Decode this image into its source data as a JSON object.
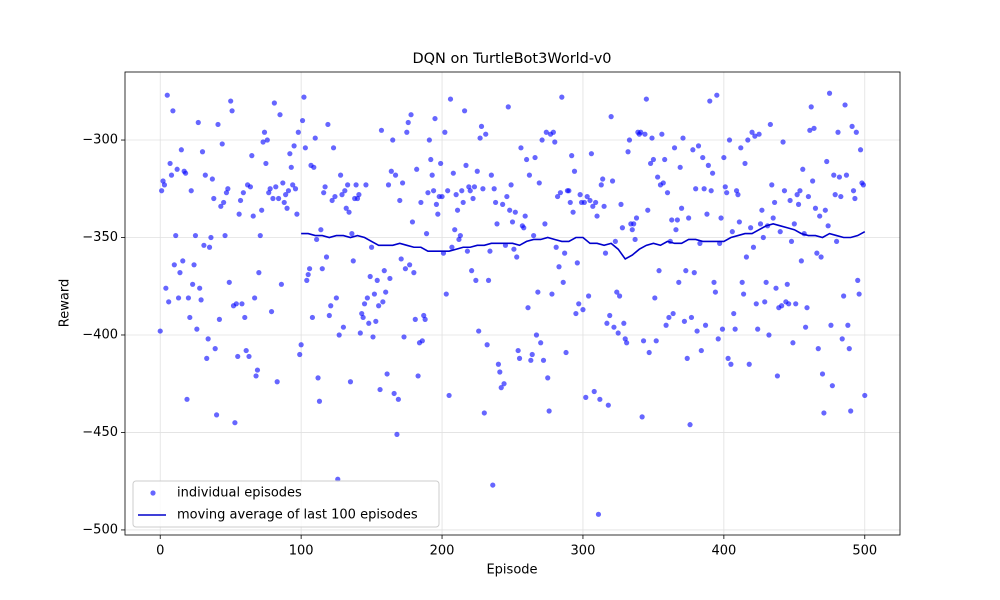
{
  "chart_data": {
    "type": "scatter-line",
    "title": "DQN on TurtleBot3World-v0",
    "x_label": "Episode",
    "y_label": "Reward",
    "xlim": [
      -25,
      525
    ],
    "ylim": [
      -502.6,
      -265.1
    ],
    "xticks": [
      0,
      100,
      200,
      300,
      400,
      500
    ],
    "yticks": [
      {
        "value": -500,
        "label": "−500"
      },
      {
        "value": -450,
        "label": "−450"
      },
      {
        "value": -400,
        "label": "−400"
      },
      {
        "value": -350,
        "label": "−350"
      },
      {
        "value": -300,
        "label": "−300"
      }
    ],
    "grid": true,
    "legend": "lower left",
    "series": [
      {
        "name": "individual episodes",
        "kind": "scatter",
        "color": "#0000ff",
        "x": [
          0,
          1,
          2,
          3,
          4,
          5,
          6,
          7,
          8,
          9,
          10,
          11,
          12,
          13,
          14,
          15,
          16,
          17,
          18,
          19,
          20,
          21,
          22,
          23,
          24,
          25,
          26,
          27,
          28,
          29,
          30,
          31,
          32,
          33,
          34,
          35,
          36,
          37,
          38,
          39,
          40,
          41,
          42,
          43,
          44,
          45,
          46,
          47,
          48,
          49,
          50,
          51,
          52,
          53,
          54,
          55,
          56,
          57,
          58,
          59,
          60,
          61,
          62,
          63,
          64,
          65,
          66,
          67,
          68,
          69,
          70,
          71,
          72,
          73,
          74,
          75,
          76,
          77,
          78,
          79,
          80,
          81,
          82,
          83,
          84,
          85,
          86,
          87,
          88,
          89,
          90,
          91,
          92,
          93,
          94,
          95,
          96,
          97,
          98,
          99,
          100,
          101,
          102,
          103,
          104,
          105,
          106,
          107,
          108,
          109,
          110,
          111,
          112,
          113,
          114,
          115,
          116,
          117,
          118,
          119,
          120,
          121,
          122,
          123,
          124,
          125,
          126,
          127,
          128,
          129,
          130,
          131,
          132,
          133,
          134,
          135,
          136,
          137,
          138,
          139,
          140,
          141,
          142,
          143,
          144,
          145,
          146,
          147,
          148,
          149,
          150,
          151,
          152,
          153,
          154,
          155,
          156,
          157,
          158,
          159,
          160,
          161,
          162,
          163,
          164,
          165,
          166,
          167,
          168,
          169,
          170,
          171,
          172,
          173,
          174,
          175,
          176,
          177,
          178,
          179,
          180,
          181,
          182,
          183,
          184,
          185,
          186,
          187,
          188,
          189,
          190,
          191,
          192,
          193,
          194,
          195,
          196,
          197,
          198,
          199,
          200,
          201,
          202,
          203,
          204,
          205,
          206,
          207,
          208,
          209,
          210,
          211,
          212,
          213,
          214,
          215,
          216,
          217,
          218,
          219,
          220,
          221,
          222,
          223,
          224,
          225,
          226,
          227,
          228,
          229,
          230,
          231,
          232,
          233,
          234,
          235,
          236,
          237,
          238,
          239,
          240,
          241,
          242,
          243,
          244,
          245,
          246,
          247,
          248,
          249,
          250,
          251,
          252,
          253,
          254,
          255,
          256,
          257,
          258,
          259,
          260,
          261,
          262,
          263,
          264,
          265,
          266,
          267,
          268,
          269,
          270,
          271,
          272,
          273,
          274,
          275,
          276,
          277,
          278,
          279,
          280,
          281,
          282,
          283,
          284,
          285,
          286,
          287,
          288,
          289,
          290,
          291,
          292,
          293,
          294,
          295,
          296,
          297,
          298,
          299,
          300,
          301,
          302,
          303,
          304,
          305,
          306,
          307,
          308,
          309,
          310,
          311,
          312,
          313,
          314,
          315,
          316,
          317,
          318,
          319,
          320,
          321,
          322,
          323,
          324,
          325,
          326,
          327,
          328,
          329,
          330,
          331,
          332,
          333,
          334,
          335,
          336,
          337,
          338,
          339,
          340,
          341,
          342,
          343,
          344,
          345,
          346,
          347,
          348,
          349,
          350,
          351,
          352,
          353,
          354,
          355,
          356,
          357,
          358,
          359,
          360,
          361,
          362,
          363,
          364,
          365,
          366,
          367,
          368,
          369,
          370,
          371,
          372,
          373,
          374,
          375,
          376,
          377,
          378,
          379,
          380,
          381,
          382,
          383,
          384,
          385,
          386,
          387,
          388,
          389,
          390,
          391,
          392,
          393,
          394,
          395,
          396,
          397,
          398,
          399,
          400,
          401,
          402,
          403,
          404,
          405,
          406,
          407,
          408,
          409,
          410,
          411,
          412,
          413,
          414,
          415,
          416,
          417,
          418,
          419,
          420,
          421,
          422,
          423,
          424,
          425,
          426,
          427,
          428,
          429,
          430,
          431,
          432,
          433,
          434,
          435,
          436,
          437,
          438,
          439,
          440,
          441,
          442,
          443,
          444,
          445,
          446,
          447,
          448,
          449,
          450,
          451,
          452,
          453,
          454,
          455,
          456,
          457,
          458,
          459,
          460,
          461,
          462,
          463,
          464,
          465,
          466,
          467,
          468,
          469,
          470,
          471,
          472,
          473,
          474,
          475,
          476,
          477,
          478,
          479,
          480,
          481,
          482,
          483,
          484,
          485,
          486,
          487,
          488,
          489,
          490,
          491,
          492,
          493,
          494,
          495,
          496,
          497,
          498,
          499,
          500
        ],
        "values": [
          -398,
          -326,
          -321,
          -323,
          -376,
          -277,
          -383,
          -312,
          -318,
          -285,
          -364,
          -349,
          -315,
          -381,
          -368,
          -305,
          -362,
          -316,
          -317,
          -433,
          -381,
          -391,
          -326,
          -374,
          -364,
          -349,
          -397,
          -291,
          -376,
          -382,
          -306,
          -354,
          -318,
          -412,
          -402,
          -355,
          -350,
          -320,
          -330,
          -407,
          -441,
          -292,
          -392,
          -334,
          -302,
          -332,
          -349,
          -327,
          -325,
          -373,
          -280,
          -285,
          -385,
          -445,
          -384,
          -411,
          -338,
          -331,
          -384,
          -327,
          -391,
          -408,
          -323,
          -411,
          -324,
          -308,
          -339,
          -381,
          -421,
          -418,
          -368,
          -349,
          -336,
          -301,
          -296,
          -312,
          -300,
          -327,
          -325,
          -388,
          -330,
          -281,
          -324,
          -424,
          -330,
          -287,
          -374,
          -322,
          -332,
          -328,
          -335,
          -326,
          -307,
          -314,
          -323,
          -303,
          -325,
          -338,
          -296,
          -410,
          -405,
          -290,
          -278,
          -304,
          -372,
          -369,
          -366,
          -313,
          -391,
          -314,
          -299,
          -351,
          -422,
          -434,
          -346,
          -366,
          -327,
          -324,
          -360,
          -292,
          -390,
          -385,
          -331,
          -304,
          -329,
          -381,
          -474,
          -400,
          -318,
          -328,
          -396,
          -326,
          -335,
          -323,
          -337,
          -424,
          -348,
          -362,
          -330,
          -323,
          -330,
          -328,
          -399,
          -389,
          -391,
          -384,
          -323,
          -381,
          -394,
          -370,
          -355,
          -401,
          -379,
          -393,
          -372,
          -385,
          -428,
          -295,
          -383,
          -367,
          -378,
          -420,
          -323,
          -371,
          -316,
          -300,
          -430,
          -318,
          -451,
          -433,
          -331,
          -361,
          -322,
          -401,
          -366,
          -296,
          -291,
          -364,
          -287,
          -342,
          -368,
          -392,
          -315,
          -421,
          -404,
          -332,
          -403,
          -390,
          -392,
          -348,
          -327,
          -300,
          -310,
          -318,
          -326,
          -289,
          -333,
          -338,
          -329,
          -312,
          -329,
          -358,
          -296,
          -379,
          -326,
          -431,
          -279,
          -355,
          -317,
          -346,
          -328,
          -336,
          -351,
          -349,
          -326,
          -332,
          -285,
          -313,
          -357,
          -324,
          -326,
          -367,
          -330,
          -324,
          -372,
          -316,
          -398,
          -299,
          -293,
          -325,
          -440,
          -297,
          -405,
          -372,
          -357,
          -318,
          -477,
          -325,
          -332,
          -343,
          -415,
          -419,
          -427,
          -333,
          -425,
          -354,
          -329,
          -283,
          -336,
          -323,
          -342,
          -356,
          -337,
          -360,
          -408,
          -412,
          -304,
          -344,
          -345,
          -339,
          -310,
          -386,
          -318,
          -413,
          -410,
          -349,
          -309,
          -400,
          -378,
          -322,
          -404,
          -300,
          -413,
          -343,
          -296,
          -422,
          -439,
          -297,
          -379,
          -296,
          -301,
          -355,
          -329,
          -365,
          -327,
          -278,
          -373,
          -358,
          -409,
          -326,
          -326,
          -332,
          -308,
          -337,
          -316,
          -389,
          -363,
          -384,
          -328,
          -332,
          -387,
          -332,
          -432,
          -329,
          -380,
          -331,
          -307,
          -334,
          -429,
          -332,
          -339,
          -492,
          -433,
          -323,
          -320,
          -334,
          -358,
          -394,
          -436,
          -390,
          -288,
          -321,
          -396,
          -352,
          -378,
          -399,
          -380,
          -333,
          -345,
          -394,
          -402,
          -404,
          -306,
          -300,
          -343,
          -346,
          -343,
          -351,
          -340,
          -296,
          -297,
          -296,
          -442,
          -403,
          -297,
          -279,
          -336,
          -409,
          -312,
          -299,
          -310,
          -381,
          -403,
          -319,
          -367,
          -323,
          -297,
          -322,
          -310,
          -395,
          -327,
          -391,
          -352,
          -341,
          -389,
          -304,
          -346,
          -341,
          -373,
          -314,
          -335,
          -299,
          -393,
          -367,
          -412,
          -340,
          -446,
          -391,
          -305,
          -368,
          -325,
          -398,
          -303,
          -353,
          -408,
          -309,
          -325,
          -395,
          -338,
          -313,
          -280,
          -326,
          -317,
          -373,
          -378,
          -277,
          -402,
          -353,
          -340,
          -397,
          -309,
          -324,
          -327,
          -412,
          -300,
          -415,
          -347,
          -389,
          -397,
          -326,
          -328,
          -342,
          -304,
          -373,
          -379,
          -312,
          -360,
          -300,
          -415,
          -345,
          -296,
          -355,
          -298,
          -384,
          -397,
          -297,
          -343,
          -336,
          -350,
          -383,
          -373,
          -344,
          -400,
          -292,
          -323,
          -340,
          -332,
          -376,
          -421,
          -386,
          -347,
          -385,
          -301,
          -326,
          -383,
          -374,
          -384,
          -331,
          -352,
          -404,
          -343,
          -384,
          -328,
          -333,
          -326,
          -362,
          -315,
          -348,
          -396,
          -386,
          -329,
          -295,
          -283,
          -321,
          -294,
          -335,
          -358,
          -407,
          -339,
          -360,
          -420,
          -440,
          -336,
          -311,
          -344,
          -276,
          -395,
          -426,
          -318,
          -328,
          -352,
          -296,
          -319,
          -329,
          -402,
          -380,
          -282,
          -318,
          -395,
          -407,
          -439,
          -293,
          -326,
          -330,
          -296,
          -372,
          -379,
          -305,
          -322,
          -323,
          -431
        ]
      },
      {
        "name": "moving average of last 100 episodes",
        "kind": "line",
        "color": "#0000cc",
        "x": [
          100,
          105,
          110,
          115,
          120,
          125,
          130,
          135,
          140,
          145,
          150,
          155,
          160,
          165,
          170,
          175,
          180,
          185,
          190,
          195,
          200,
          205,
          210,
          215,
          220,
          225,
          230,
          235,
          240,
          245,
          250,
          255,
          260,
          265,
          270,
          275,
          280,
          285,
          290,
          295,
          300,
          305,
          310,
          315,
          320,
          325,
          330,
          335,
          340,
          345,
          350,
          355,
          360,
          365,
          370,
          375,
          380,
          385,
          390,
          395,
          400,
          405,
          410,
          415,
          420,
          425,
          430,
          435,
          440,
          445,
          450,
          455,
          460,
          465,
          470,
          475,
          480,
          485,
          490,
          495,
          500
        ],
        "values": [
          -348,
          -348,
          -349,
          -349,
          -350,
          -349,
          -349,
          -350,
          -349,
          -350,
          -352,
          -354,
          -354,
          -354,
          -353,
          -354,
          -355,
          -355,
          -357,
          -357,
          -357,
          -357,
          -356,
          -355,
          -355,
          -354,
          -354,
          -353,
          -353,
          -353,
          -353,
          -354,
          -352,
          -351,
          -351,
          -350,
          -351,
          -352,
          -352,
          -350,
          -350,
          -353,
          -353,
          -354,
          -353,
          -356,
          -361,
          -359,
          -356,
          -354,
          -353,
          -354,
          -352,
          -353,
          -353,
          -351,
          -351,
          -352,
          -352,
          -352,
          -352,
          -350,
          -349,
          -348,
          -348,
          -346,
          -344,
          -343,
          -344,
          -345,
          -346,
          -348,
          -349,
          -349,
          -350,
          -348,
          -349,
          -350,
          -350,
          -349,
          -347
        ]
      }
    ]
  }
}
